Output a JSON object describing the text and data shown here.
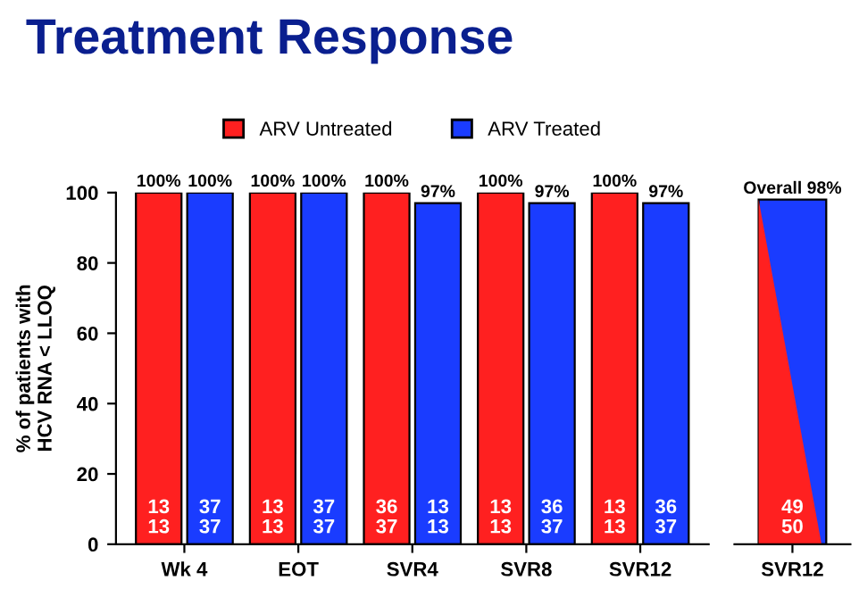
{
  "chart_data": [
    {
      "type": "bar",
      "title": "Treatment Response",
      "ylabel": "% of patients with\nHCV RNA < LLOQ",
      "categories": [
        "Wk 4",
        "EOT",
        "SVR4",
        "SVR8",
        "SVR12"
      ],
      "series": [
        {
          "name": "ARV Untreated",
          "color": "#ff2020",
          "values": [
            100,
            100,
            100,
            100,
            100
          ],
          "value_labels": [
            "100%",
            "100%",
            "100%",
            "100%",
            "100%"
          ]
        },
        {
          "name": "ARV Treated",
          "color": "#1a3cff",
          "values": [
            100,
            100,
            97,
            97,
            97
          ],
          "value_labels": [
            "100%",
            "100%",
            "97%",
            "97%",
            "97%"
          ]
        }
      ],
      "ylim": [
        0,
        100
      ],
      "yticks": [
        0,
        20,
        40,
        60,
        80,
        100
      ],
      "legend": "top",
      "grid": false,
      "annotations": [
        "13\n13",
        "37\n37",
        "13\n13",
        "37\n37",
        "36\n37",
        "13\n13",
        "13\n13",
        "36\n37",
        "13\n13",
        "36\n37"
      ]
    },
    {
      "type": "bar",
      "categories": [
        "SVR12"
      ],
      "values": [
        98
      ],
      "value_labels": [
        "Overall 98%"
      ],
      "color": "#1a3cff",
      "ylim": [
        0,
        100
      ],
      "tick_labels": "x",
      "grid": false,
      "annotations": [
        "49\n50"
      ]
    }
  ]
}
